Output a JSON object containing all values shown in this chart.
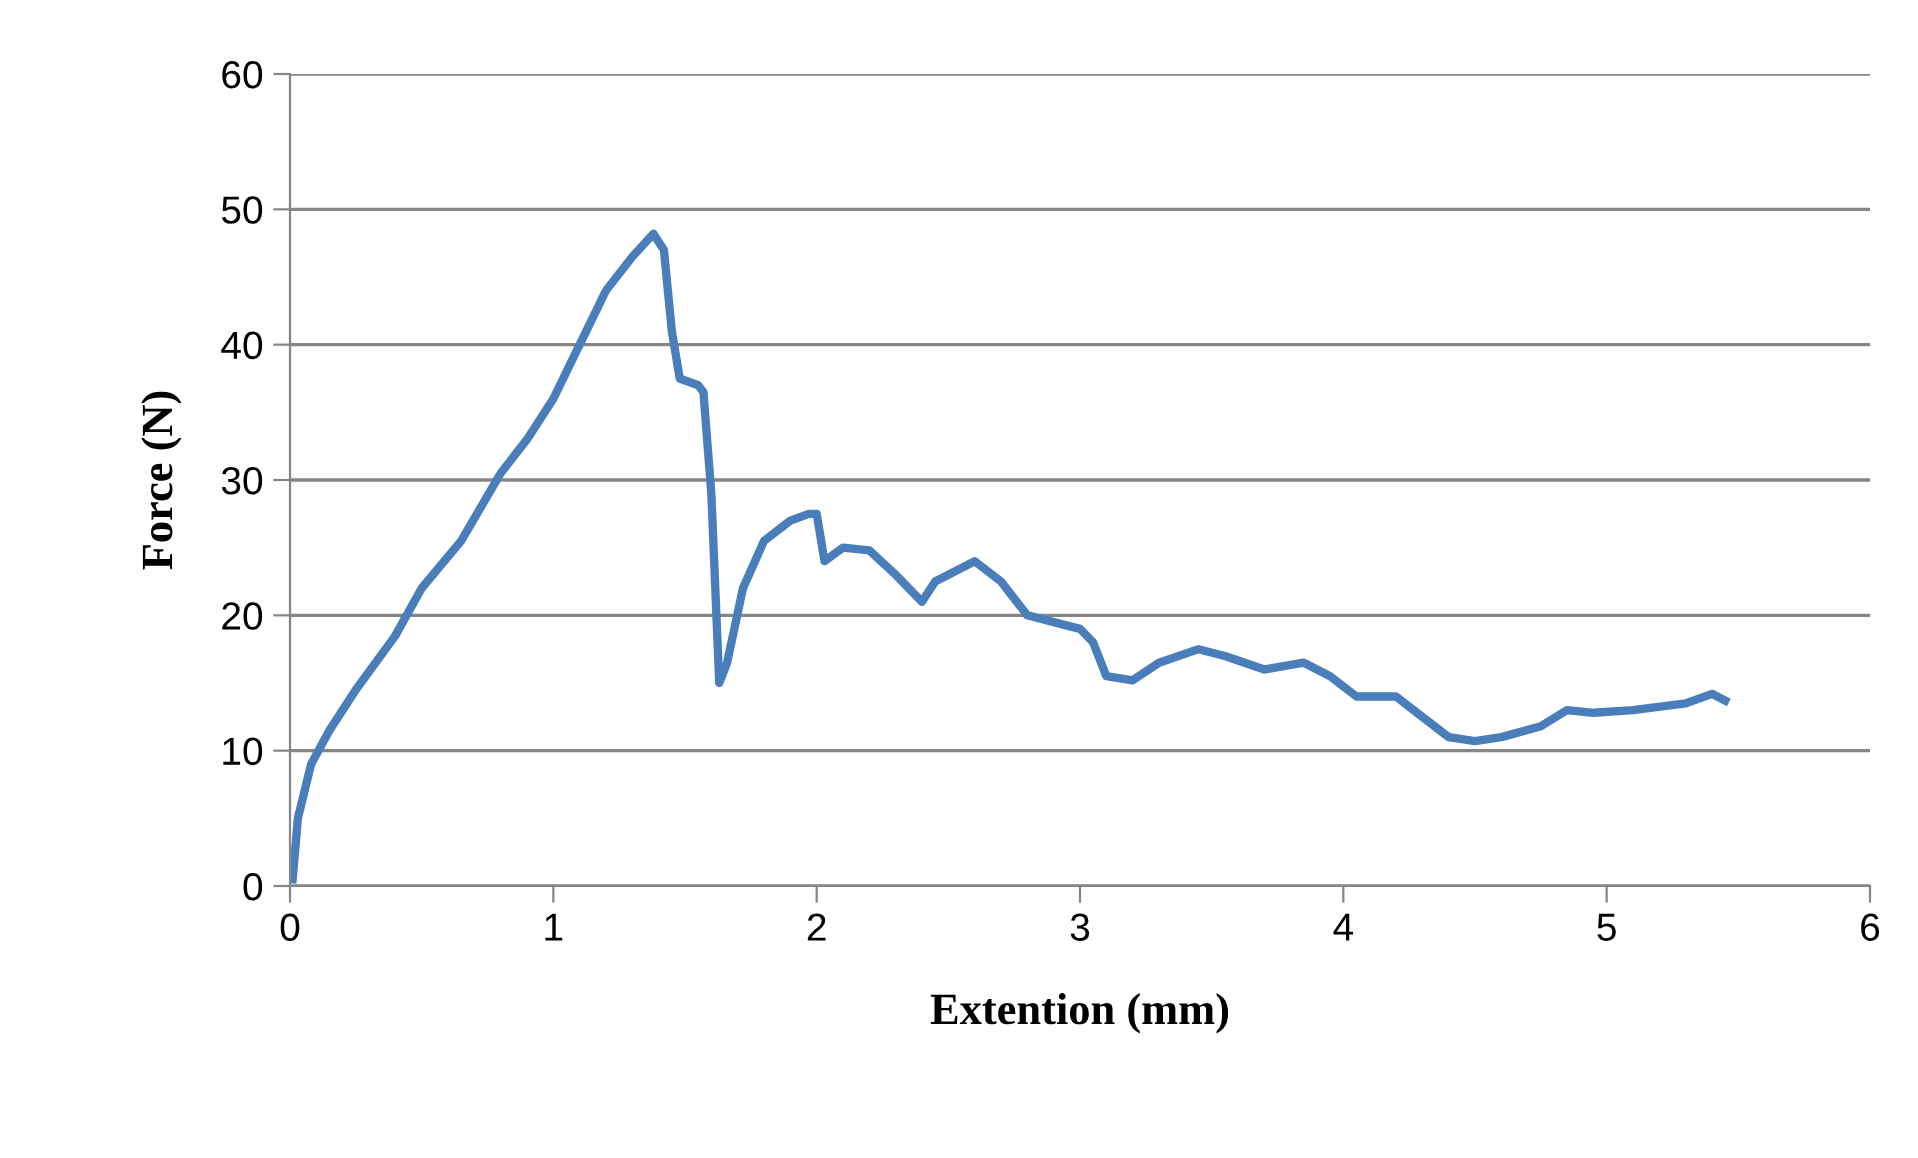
{
  "chart_data": {
    "type": "line",
    "xlabel": "Extention (mm)",
    "ylabel": "Force (N)",
    "xlim": [
      0,
      6
    ],
    "xticks": [
      0,
      1,
      2,
      3,
      4,
      5,
      6
    ],
    "ylim": [
      0,
      60
    ],
    "yticks": [
      0,
      10,
      20,
      30,
      40,
      50,
      60
    ],
    "grid": "y",
    "marker": "none",
    "line_style": "solid",
    "series": [
      {
        "color": "#4a7ebb",
        "x": [
          0.01,
          0.03,
          0.08,
          0.15,
          0.25,
          0.4,
          0.5,
          0.65,
          0.8,
          0.9,
          1.0,
          1.1,
          1.2,
          1.3,
          1.38,
          1.42,
          1.45,
          1.48,
          1.55,
          1.57,
          1.6,
          1.63,
          1.66,
          1.72,
          1.8,
          1.9,
          1.97,
          2.0,
          2.03,
          2.1,
          2.2,
          2.3,
          2.4,
          2.45,
          2.55,
          2.6,
          2.7,
          2.8,
          2.9,
          3.0,
          3.05,
          3.1,
          3.2,
          3.3,
          3.45,
          3.55,
          3.7,
          3.85,
          3.95,
          4.05,
          4.2,
          4.3,
          4.4,
          4.5,
          4.6,
          4.75,
          4.85,
          4.95,
          5.1,
          5.3,
          5.4,
          5.45
        ],
        "values": [
          0.5,
          5,
          9,
          11.5,
          14.5,
          18.5,
          22,
          25.5,
          30.5,
          33,
          36,
          40,
          44,
          46.5,
          48.2,
          47,
          41,
          37.5,
          37,
          36.5,
          29,
          15,
          16.5,
          22,
          25.5,
          27,
          27.5,
          27.5,
          24,
          25,
          24.8,
          23,
          21,
          22.5,
          23.5,
          24,
          22.5,
          20,
          19.5,
          19,
          18,
          15.5,
          15.2,
          16.5,
          17.5,
          17,
          16,
          16.5,
          15.5,
          14,
          14,
          12.5,
          11,
          10.7,
          11,
          11.8,
          13,
          12.8,
          13,
          13.5,
          14.2,
          13.7
        ]
      }
    ]
  }
}
